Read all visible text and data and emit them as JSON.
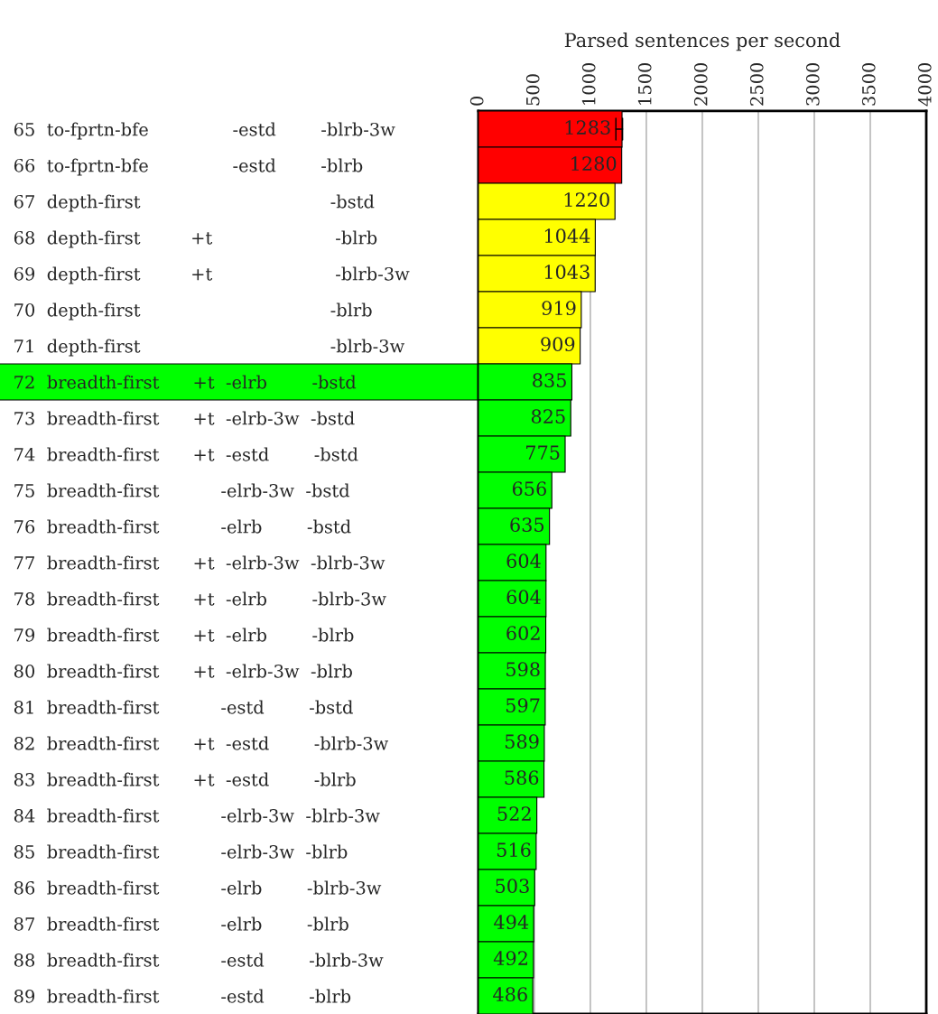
{
  "chart_data": {
    "type": "bar",
    "orientation": "horizontal",
    "xlabel": "Parsed sentences per second",
    "categories": [
      "65  to-fprtn-bfe               -estd        -blrb-3w",
      "66  to-fprtn-bfe               -estd        -blrb",
      "67  depth-first                                  -bstd",
      "68  depth-first         +t                      -blrb",
      "69  depth-first         +t                      -blrb-3w",
      "70  depth-first                                  -blrb",
      "71  depth-first                                  -blrb-3w",
      "72  breadth-first      +t  -elrb        -bstd",
      "73  breadth-first      +t  -elrb-3w  -bstd",
      "74  breadth-first      +t  -estd        -bstd",
      "75  breadth-first           -elrb-3w  -bstd",
      "76  breadth-first           -elrb        -bstd",
      "77  breadth-first      +t  -elrb-3w  -blrb-3w",
      "78  breadth-first      +t  -elrb        -blrb-3w",
      "79  breadth-first      +t  -elrb        -blrb",
      "80  breadth-first      +t  -elrb-3w  -blrb",
      "81  breadth-first           -estd        -bstd",
      "82  breadth-first      +t  -estd        -blrb-3w",
      "83  breadth-first      +t  -estd        -blrb",
      "84  breadth-first           -elrb-3w  -blrb-3w",
      "85  breadth-first           -elrb-3w  -blrb",
      "86  breadth-first           -elrb        -blrb-3w",
      "87  breadth-first           -elrb        -blrb",
      "88  breadth-first           -estd        -blrb-3w",
      "89  breadth-first           -estd        -blrb"
    ],
    "values": [
      1283,
      1280,
      1220,
      1044,
      1043,
      919,
      909,
      835,
      825,
      775,
      656,
      635,
      604,
      604,
      602,
      598,
      597,
      589,
      586,
      522,
      516,
      503,
      494,
      492,
      486
    ],
    "colors": [
      "#ff0000",
      "#ff0000",
      "#ffff00",
      "#ffff00",
      "#ffff00",
      "#ffff00",
      "#ffff00",
      "#00ff00",
      "#00ff00",
      "#00ff00",
      "#00ff00",
      "#00ff00",
      "#00ff00",
      "#00ff00",
      "#00ff00",
      "#00ff00",
      "#00ff00",
      "#00ff00",
      "#00ff00",
      "#00ff00",
      "#00ff00",
      "#00ff00",
      "#00ff00",
      "#00ff00",
      "#00ff00"
    ],
    "errors": [
      [
        1228,
        1288
      ],
      null,
      null,
      null,
      null,
      null,
      null,
      null,
      null,
      null,
      null,
      null,
      null,
      null,
      null,
      null,
      null,
      null,
      null,
      null,
      null,
      null,
      null,
      null,
      null
    ],
    "xlim": [
      0,
      4000
    ],
    "xticks": [
      0,
      500,
      1000,
      1500,
      2000,
      2500,
      3000,
      3500,
      4000
    ],
    "grid": "x",
    "data_labels": true
  }
}
